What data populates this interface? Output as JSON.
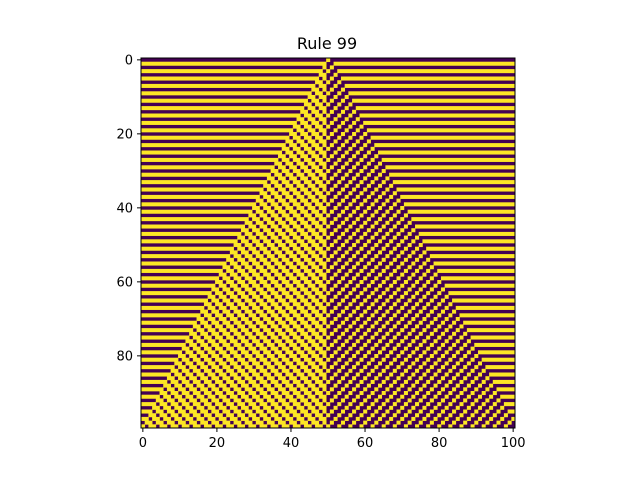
{
  "chart_data": {
    "type": "heatmap",
    "title": "Rule 99",
    "rule": 99,
    "width": 101,
    "generations": 100,
    "initial_state": "single active cell at column 50",
    "boundary": "periodic",
    "colormap": "viridis",
    "values": [
      0,
      1
    ],
    "colors": {
      "0": "#440154",
      "1": "#fde725"
    },
    "xlim": [
      -0.5,
      100.5
    ],
    "ylim": [
      99.5,
      -0.5
    ],
    "x_ticks": [
      0,
      20,
      40,
      60,
      80,
      100
    ],
    "x_tick_labels": [
      "0",
      "20",
      "40",
      "60",
      "80",
      "100"
    ],
    "y_ticks": [
      0,
      20,
      40,
      60,
      80
    ],
    "y_tick_labels": [
      "0",
      "20",
      "40",
      "60",
      "80"
    ],
    "xlabel": "",
    "ylabel": "",
    "grid": false,
    "legend": "none"
  }
}
